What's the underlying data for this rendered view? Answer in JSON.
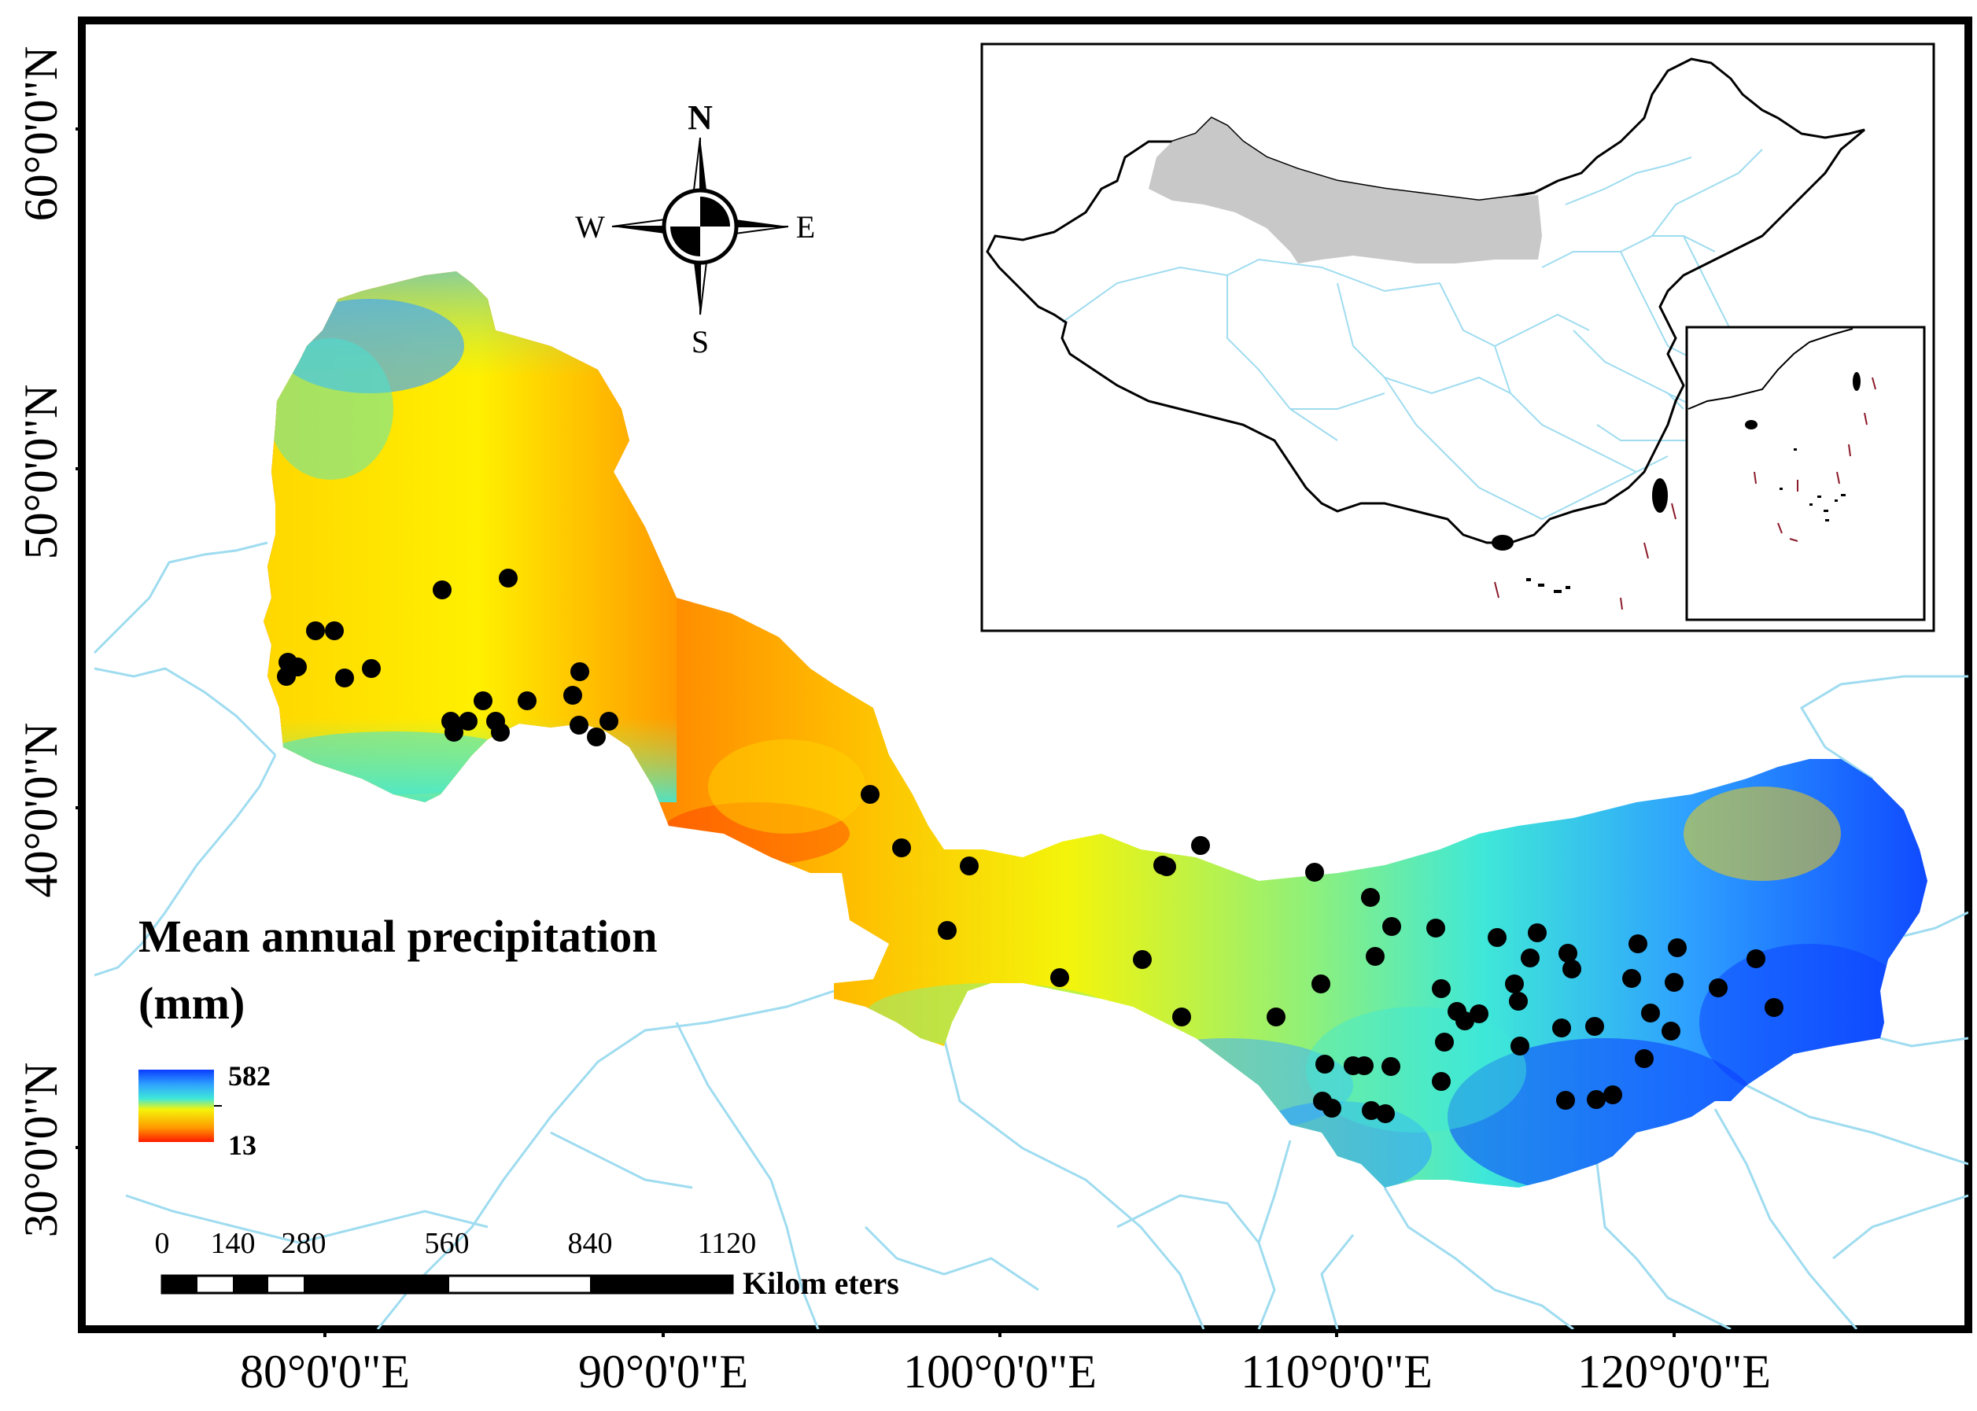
{
  "map": {
    "latitude_labels": [
      "60°0'0\"N",
      "50°0'0\"N",
      "40°0'0\"N",
      "30°0'0\"N"
    ],
    "longitude_labels": [
      "80°0'0\"E",
      "90°0'0\"E",
      "100°0'0\"E",
      "110°0'0\"E",
      "120°0'0\"E"
    ]
  },
  "compass": {
    "north": "N",
    "south": "S",
    "east": "E",
    "west": "W"
  },
  "legend": {
    "title_line1": "Mean annual precipitation",
    "title_line2": "(mm)",
    "max": "582",
    "min": "13",
    "colors": [
      "#0a3cff",
      "#2ea0ff",
      "#3fe8d8",
      "#f4f40a",
      "#ff9a00",
      "#ff1a00"
    ]
  },
  "scale_bar": {
    "ticks": [
      "0",
      "140",
      "280",
      "560",
      "840",
      "1120"
    ],
    "unit": "Kilom eters"
  },
  "colors": {
    "boundary_lines": "#9fdcf0",
    "inset_highlight": "#c8c8c8",
    "sites": "#000000",
    "frame": "#000000"
  }
}
